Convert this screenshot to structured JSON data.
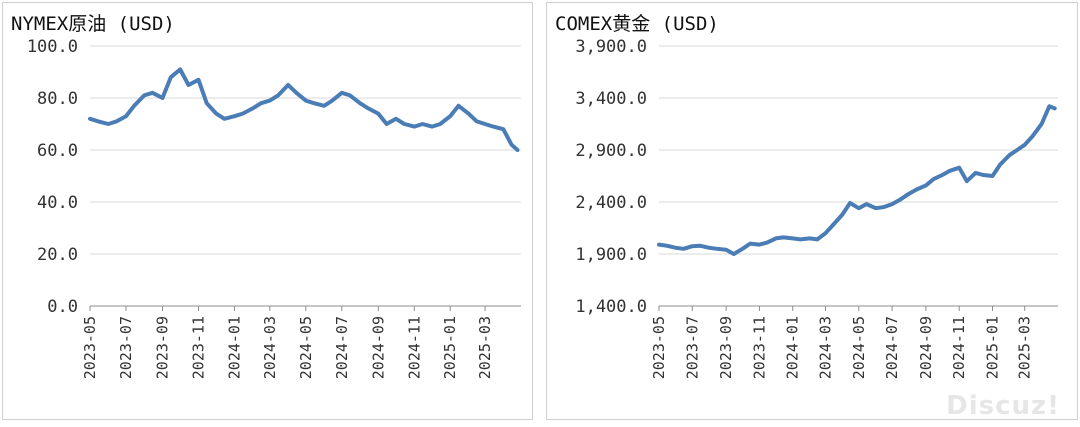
{
  "watermark": "Discuz!",
  "colors": {
    "line": "#4a7cb5",
    "grid": "#d9d9d9",
    "axis": "#8c8c8c",
    "text": "#333333"
  },
  "chart_data": [
    {
      "type": "line",
      "title": "NYMEX原油 (USD)",
      "ylim": [
        0,
        100
      ],
      "yticks": [
        0,
        20,
        40,
        60,
        80,
        100
      ],
      "ytick_labels": [
        "0.0",
        "20.0",
        "40.0",
        "60.0",
        "80.0",
        "100.0"
      ],
      "xlim": [
        "2023-05",
        "2025-05"
      ],
      "xticks": [
        "2023-05",
        "2023-07",
        "2023-09",
        "2023-11",
        "2024-01",
        "2024-03",
        "2024-05",
        "2024-07",
        "2024-09",
        "2024-11",
        "2025-01",
        "2025-03"
      ],
      "grid": "horizontal",
      "series": [
        {
          "x": [
            "2023-05-01",
            "2023-05-15",
            "2023-06-01",
            "2023-06-15",
            "2023-07-01",
            "2023-07-15",
            "2023-08-01",
            "2023-08-15",
            "2023-09-01",
            "2023-09-15",
            "2023-10-01",
            "2023-10-15",
            "2023-11-01",
            "2023-11-15",
            "2023-12-01",
            "2023-12-15",
            "2024-01-01",
            "2024-01-15",
            "2024-02-01",
            "2024-02-15",
            "2024-03-01",
            "2024-03-15",
            "2024-04-01",
            "2024-04-15",
            "2024-05-01",
            "2024-05-15",
            "2024-06-01",
            "2024-06-15",
            "2024-07-01",
            "2024-07-15",
            "2024-08-01",
            "2024-08-15",
            "2024-09-01",
            "2024-09-15",
            "2024-10-01",
            "2024-10-15",
            "2024-11-01",
            "2024-11-15",
            "2024-12-01",
            "2024-12-15",
            "2025-01-01",
            "2025-01-15",
            "2025-02-01",
            "2025-02-15",
            "2025-03-01",
            "2025-03-15",
            "2025-04-01",
            "2025-04-15",
            "2025-04-25"
          ],
          "y": [
            72,
            71,
            70,
            71,
            73,
            77,
            81,
            82,
            80,
            88,
            91,
            85,
            87,
            78,
            74,
            72,
            73,
            74,
            76,
            78,
            79,
            81,
            85,
            82,
            79,
            78,
            77,
            79,
            82,
            81,
            78,
            76,
            74,
            70,
            72,
            70,
            69,
            70,
            69,
            70,
            73,
            77,
            74,
            71,
            70,
            69,
            68,
            62,
            60
          ]
        }
      ]
    },
    {
      "type": "line",
      "title": "COMEX黄金 (USD)",
      "ylim": [
        1400,
        3900
      ],
      "yticks": [
        1400,
        1900,
        2400,
        2900,
        3400,
        3900
      ],
      "ytick_labels": [
        "1,400.0",
        "1,900.0",
        "2,400.0",
        "2,900.0",
        "3,400.0",
        "3,900.0"
      ],
      "xlim": [
        "2023-05",
        "2025-05"
      ],
      "xticks": [
        "2023-05",
        "2023-07",
        "2023-09",
        "2023-11",
        "2024-01",
        "2024-03",
        "2024-05",
        "2024-07",
        "2024-09",
        "2024-11",
        "2025-01",
        "2025-03"
      ],
      "grid": "horizontal",
      "series": [
        {
          "x": [
            "2023-05-01",
            "2023-05-15",
            "2023-06-01",
            "2023-06-15",
            "2023-07-01",
            "2023-07-15",
            "2023-08-01",
            "2023-08-15",
            "2023-09-01",
            "2023-09-15",
            "2023-10-01",
            "2023-10-15",
            "2023-11-01",
            "2023-11-15",
            "2023-12-01",
            "2023-12-15",
            "2024-01-01",
            "2024-01-15",
            "2024-02-01",
            "2024-02-15",
            "2024-03-01",
            "2024-03-15",
            "2024-04-01",
            "2024-04-15",
            "2024-05-01",
            "2024-05-15",
            "2024-06-01",
            "2024-06-15",
            "2024-07-01",
            "2024-07-15",
            "2024-08-01",
            "2024-08-15",
            "2024-09-01",
            "2024-09-15",
            "2024-10-01",
            "2024-10-15",
            "2024-11-01",
            "2024-11-15",
            "2024-12-01",
            "2024-12-15",
            "2025-01-01",
            "2025-01-15",
            "2025-02-01",
            "2025-02-15",
            "2025-03-01",
            "2025-03-15",
            "2025-04-01",
            "2025-04-15",
            "2025-04-25"
          ],
          "y": [
            1990,
            1980,
            1960,
            1950,
            1975,
            1980,
            1960,
            1950,
            1940,
            1900,
            1950,
            2000,
            1990,
            2010,
            2050,
            2060,
            2050,
            2040,
            2050,
            2040,
            2100,
            2180,
            2280,
            2390,
            2340,
            2380,
            2340,
            2350,
            2380,
            2420,
            2480,
            2520,
            2560,
            2620,
            2660,
            2700,
            2730,
            2600,
            2680,
            2660,
            2650,
            2760,
            2850,
            2900,
            2950,
            3030,
            3150,
            3320,
            3300
          ]
        }
      ]
    }
  ]
}
